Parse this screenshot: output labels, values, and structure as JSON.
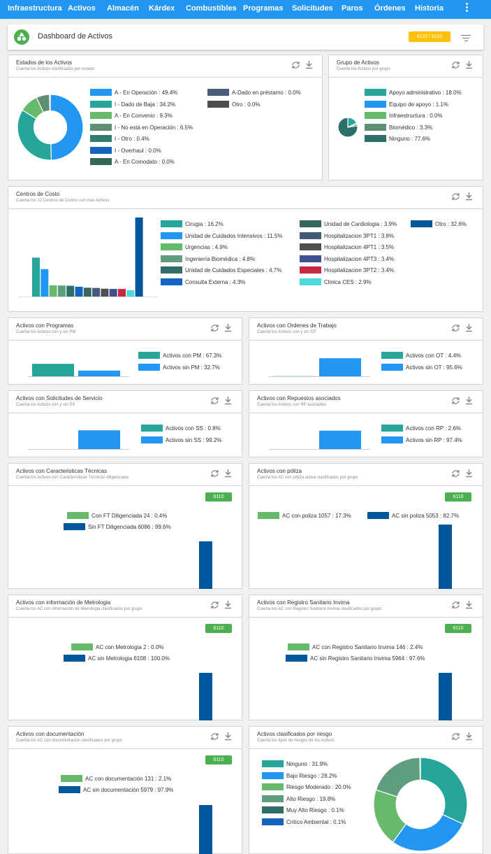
{
  "nav": {
    "items": [
      "Infraestructura",
      "Activos",
      "Almacén",
      "Kárdex",
      "Combustibles",
      "Programas",
      "Solicitudes",
      "Paros",
      "Órdenes",
      "Historia"
    ]
  },
  "dashboard": {
    "title": "Dashboard de Activos",
    "badge": "6110 / 6110"
  },
  "icons": {
    "refresh": "refresh-icon",
    "download": "download-icon",
    "filter": "filter-icon",
    "menu": "kebab-menu-icon",
    "logo": "shapes-logo-icon"
  },
  "colors": {
    "primary": "#2196f3",
    "green": "#4caf50",
    "teal": "#26a69a",
    "darkblue": "#01579b",
    "amber": "#ffc107"
  },
  "cards": {
    "estados": {
      "title": "Estados de los Activos",
      "subtitle": "Cuenta los Activos clasificados por estado",
      "chart_data": {
        "type": "pie",
        "donut": true,
        "labels": [
          "A - En Operación",
          "I - Dado de Baja",
          "A - En Convenio",
          "I - No está en Operación",
          "I - Otro",
          "I - Overhaul",
          "A - En Comodato",
          "A-Dado en préstamo",
          "Otro"
        ],
        "values": [
          49.4,
          34.2,
          9.3,
          6.5,
          0.4,
          0.0,
          0.0,
          0.0,
          0.0
        ],
        "colors": [
          "#2196f3",
          "#26a69a",
          "#66bb6a",
          "#5e8e73",
          "#2e7d6e",
          "#1565c0",
          "#37665a",
          "#4a5e7a",
          "#4e4e4e"
        ]
      },
      "legend_text": [
        "A - En Operación : 49.4%",
        "I - Dado de Baja : 34.2%",
        "A - En Convenio : 9.3%",
        "I - No está en Operación : 6.5%",
        "I - Otro : 0.4%",
        "I - Overhaul : 0.0%",
        "A - En Comodato : 0.0%",
        "A-Dado en préstamo : 0.0%",
        "Otro : 0.0%"
      ]
    },
    "grupo": {
      "title": "Grupo de Activos",
      "subtitle": "Cuenta los Activos por grupo",
      "chart_data": {
        "type": "pie",
        "labels": [
          "Apoyo administrativo",
          "Equipo de apoyo",
          "Infraestructura",
          "Biomédico",
          "Ninguno"
        ],
        "values": [
          18.0,
          1.1,
          0.0,
          3.3,
          77.6
        ],
        "colors": [
          "#26a69a",
          "#2196f3",
          "#66bb6a",
          "#5e8e73",
          "#2e6e68"
        ]
      },
      "legend_text": [
        "Apoyo administrativo : 18.0%",
        "Equipo de apoyo : 1.1%",
        "Infraestructura : 0.0%",
        "Biomédico : 3.3%",
        "Ninguno : 77.6%"
      ]
    },
    "centros": {
      "title": "Centros de Costo",
      "subtitle": "Cuenta los 12 Centros de Costos con mas Activos",
      "chart_data": {
        "type": "bar",
        "categories": [
          "Cirugia",
          "Unidad de Cuidados Intensivos",
          "Urgencias",
          "Ingeniería Biomédica",
          "Unidad de Cuidados Especiales",
          "Consulta Externa",
          "Unidad de Cardiologia",
          "Hospitalizacion 3PT1",
          "Hospitalizacion 4PT1",
          "Hospitalizacion 4PT3",
          "Hospitalizacion 3PT2",
          "Clinica CES",
          "Otro"
        ],
        "values": [
          16.2,
          11.5,
          4.9,
          4.8,
          4.7,
          4.3,
          3.9,
          3.8,
          3.5,
          3.4,
          3.4,
          2.9,
          32.6
        ],
        "colors": [
          "#26a69a",
          "#2196f3",
          "#66bb6a",
          "#5e9e7e",
          "#2e6e68",
          "#1565c0",
          "#37665a",
          "#455a7a",
          "#4e4e4e",
          "#3f4f8f",
          "#c62840",
          "#4dd9d9",
          "#01579b"
        ]
      },
      "legend_text": [
        "Cirugia : 16.2%",
        "Unidad de Cuidados Intensivos : 11.5%",
        "Urgencias : 4.9%",
        "Ingeniería Biomédica : 4.8%",
        "Unidad de Cuidados Especiales : 4.7%",
        "Consulta Externa : 4.3%",
        "Unidad de Cardiologia : 3.9%",
        "Hospitalizacion 3PT1 : 3.8%",
        "Hospitalizacion 4PT1 : 3.5%",
        "Hospitalizacion 4PT3 : 3.4%",
        "Hospitalizacion 3PT2 : 3.4%",
        "Clinica CES : 2.9%",
        "Otro : 32.6%"
      ]
    },
    "programas": {
      "title": "Activos con Programas",
      "subtitle": "Cuenta los Activos con y sin PM",
      "chart_data": {
        "type": "bar",
        "categories": [
          "Activos con PM",
          "Activos sin PM"
        ],
        "values": [
          67.3,
          32.7
        ],
        "colors": [
          "#26a69a",
          "#2196f3"
        ]
      },
      "legend_text": [
        "Activos con PM : 67.3%",
        "Activos sin PM : 32.7%"
      ]
    },
    "ordenes": {
      "title": "Activos con Ordenes de Trabajo",
      "subtitle": "Cuenta los Activos con y sin OT",
      "chart_data": {
        "type": "bar",
        "categories": [
          "Activos con OT",
          "Activos sin OT"
        ],
        "values": [
          4.4,
          95.6
        ],
        "colors": [
          "#26a69a",
          "#2196f3"
        ]
      },
      "legend_text": [
        "Activos con OT : 4.4%",
        "Activos sin OT : 95.6%"
      ]
    },
    "solicitudes": {
      "title": "Activos con Solicitudes de Servicio",
      "subtitle": "Cuenta los Activos con y sin SS",
      "chart_data": {
        "type": "bar",
        "categories": [
          "Activos con SS",
          "Activos sin SS"
        ],
        "values": [
          0.8,
          99.2
        ],
        "colors": [
          "#26a69a",
          "#2196f3"
        ]
      },
      "legend_text": [
        "Activos con SS : 0.8%",
        "Activos sin SS : 99.2%"
      ]
    },
    "repuestos": {
      "title": "Activos con Repuestos asociados",
      "subtitle": "Cuenta los Activos con RP asociados",
      "chart_data": {
        "type": "bar",
        "categories": [
          "Activos con RP",
          "Activos sin RP"
        ],
        "values": [
          2.6,
          97.4
        ],
        "colors": [
          "#26a69a",
          "#2196f3"
        ]
      },
      "legend_text": [
        "Activos con RP : 2.6%",
        "Activos sin RP : 97.4%"
      ]
    },
    "caracteristicas": {
      "title": "Activos con Caracteristicas Técnicas",
      "subtitle": "Cuenta los Activos con Caracteristicas Técnicas diligenciada",
      "badge": "6110",
      "chart_data": {
        "type": "bar",
        "categories": [
          "Con FT Diligenciada",
          "Sin FT Diligenciada"
        ],
        "values": [
          24,
          6086
        ],
        "percent": [
          0.4,
          99.6
        ],
        "colors": [
          "#66bb6a",
          "#01579b"
        ]
      },
      "legend_text": [
        "Con FT Diligenciada 24  : 0.4%",
        "Sin FT Diligenciada 6086  : 99.6%"
      ]
    },
    "poliza": {
      "title": "Activos con póliza",
      "subtitle": "Cuenta los AC con póliza activa clasificados por grupo",
      "badge": "6110",
      "chart_data": {
        "type": "bar",
        "categories": [
          "AC con poliza",
          "AC sin poliza"
        ],
        "values": [
          1057,
          5053
        ],
        "percent": [
          17.3,
          82.7
        ],
        "colors": [
          "#66bb6a",
          "#01579b"
        ]
      },
      "legend_text": [
        "AC con poliza 1057  : 17.3%",
        "AC sin poliza 5053  : 82.7%"
      ]
    },
    "metrologia": {
      "title": "Activos con información de Metrologia",
      "subtitle": "Cuenta los AC con información de Metrologia clasificados por grupo",
      "badge": "6110",
      "chart_data": {
        "type": "bar",
        "categories": [
          "AC con Metrologia",
          "AC sin Metrologia"
        ],
        "values": [
          2,
          6108
        ],
        "percent": [
          0.0,
          100.0
        ],
        "colors": [
          "#66bb6a",
          "#01579b"
        ]
      },
      "legend_text": [
        "AC con Metrologia 2  : 0.0%",
        "AC sin Metrologia 6108  : 100.0%"
      ]
    },
    "invima": {
      "title": "Activos con Registro Sanitario Invima",
      "subtitle": "Cuenta los AC con Registro Sanitario Invima clasificados por grupo",
      "badge": "6110",
      "chart_data": {
        "type": "bar",
        "categories": [
          "AC con Registro Sanitario Invima",
          "AC sin Registro Sanitario Invima"
        ],
        "values": [
          146,
          5964
        ],
        "percent": [
          2.4,
          97.6
        ],
        "colors": [
          "#66bb6a",
          "#01579b"
        ]
      },
      "legend_text": [
        "AC con Registro Sanitario Invima 146  : 2.4%",
        "AC sin Registro Sanitario Invima 5964  : 97.6%"
      ]
    },
    "documentacion": {
      "title": "Activos con documentación",
      "subtitle": "Cuenta los AC con documentación clasificados por grupo",
      "badge": "6110",
      "chart_data": {
        "type": "bar",
        "categories": [
          "AC con documentación",
          "AC sin documentación"
        ],
        "values": [
          131,
          5979
        ],
        "percent": [
          2.1,
          97.9
        ],
        "colors": [
          "#66bb6a",
          "#01579b"
        ]
      },
      "legend_text": [
        "AC con documentación 131  : 2.1%",
        "AC sin documentación 5979  : 97.9%"
      ]
    },
    "riesgo": {
      "title": "Activos clasificados por riesgo",
      "subtitle": "Cuenta los tipos de riesgos de los Activos",
      "chart_data": {
        "type": "pie",
        "donut": true,
        "labels": [
          "Ninguno",
          "Bajo Riesgo",
          "Riesgo Moderado",
          "Alto Riesgo",
          "Muy Alto Riesgo",
          "Crítico Ambiental"
        ],
        "values": [
          31.9,
          28.2,
          20.0,
          19.8,
          0.1,
          0.1
        ],
        "colors": [
          "#26a69a",
          "#2196f3",
          "#66bb6a",
          "#5e9e7e",
          "#2e6e68",
          "#1565c0"
        ]
      },
      "legend_text": [
        "Ninguno : 31.9%",
        "Bajo Riesgo : 28.2%",
        "Riesgo Moderado : 20.0%",
        "Alto Riesgo : 19.8%",
        "Muy Alto Riesgo : 0.1%",
        "Crítico Ambiental : 0.1%"
      ]
    }
  }
}
